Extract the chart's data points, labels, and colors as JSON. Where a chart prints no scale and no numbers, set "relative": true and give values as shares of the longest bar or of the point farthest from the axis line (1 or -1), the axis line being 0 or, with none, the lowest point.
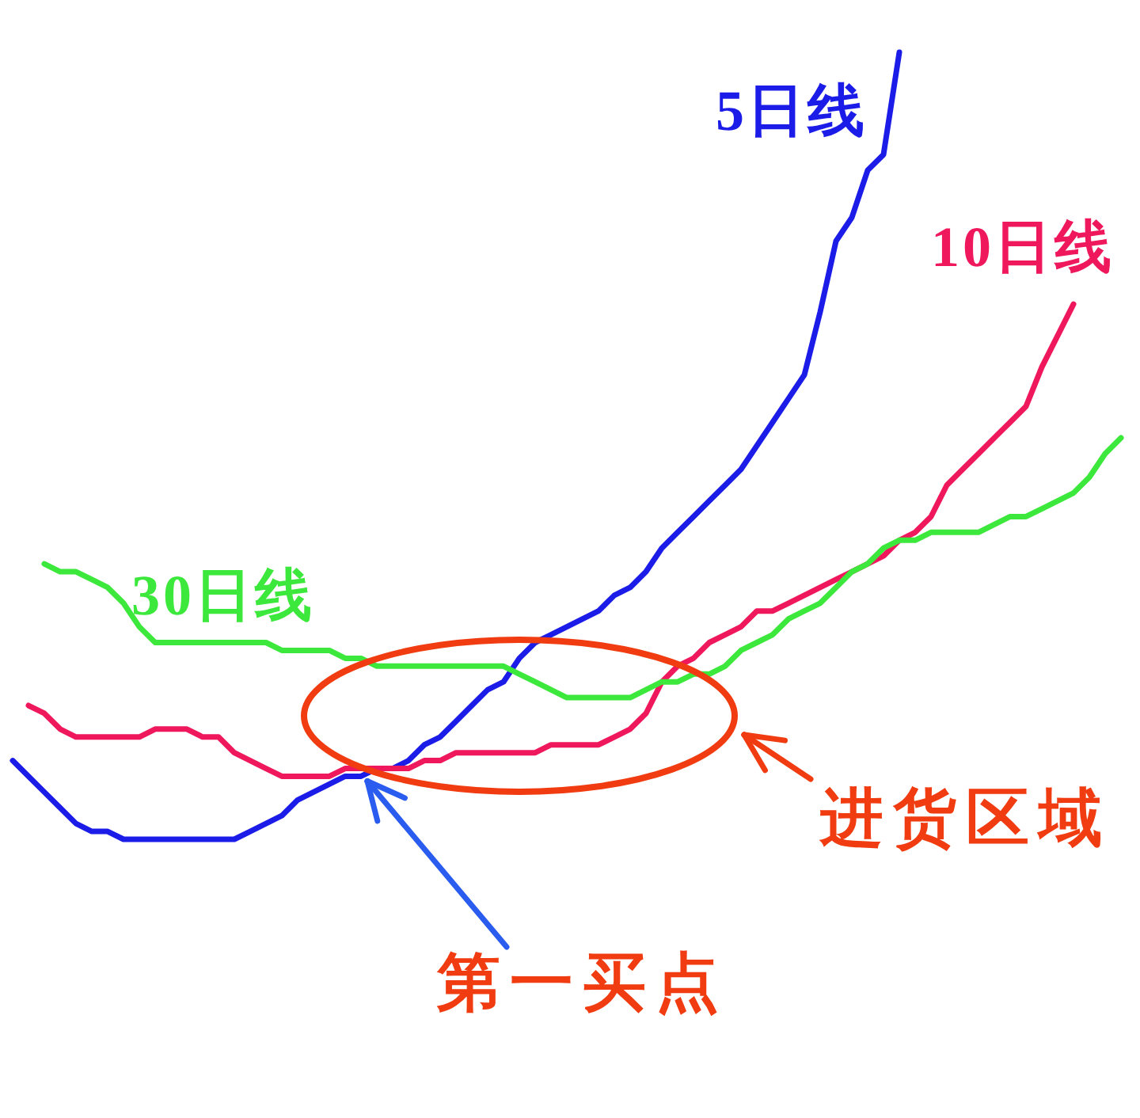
{
  "chart_data": {
    "type": "line",
    "relative": true,
    "line_style": "solid",
    "categories": [
      null,
      null,
      null,
      null,
      null,
      null,
      null,
      null,
      null,
      null,
      null,
      null,
      null,
      null,
      null,
      null,
      null,
      null,
      null,
      null,
      null,
      null,
      null,
      null,
      null,
      null,
      null,
      null,
      null,
      null,
      null,
      null,
      null,
      null,
      null,
      null,
      null,
      null,
      null,
      null,
      null,
      null,
      null,
      null,
      null,
      null,
      null,
      null,
      null,
      null,
      null,
      null,
      null,
      null,
      null,
      null,
      null,
      null,
      null,
      null,
      null,
      null,
      null,
      null,
      null,
      null,
      null,
      null,
      null,
      null,
      null
    ],
    "series": [
      {
        "name": "5日线",
        "color": "#1c1ce8",
        "values": [
          0.1,
          0.08,
          0.06,
          0.04,
          0.02,
          0.01,
          0.01,
          0,
          0,
          0,
          0,
          0,
          0,
          0,
          0,
          0.01,
          0.02,
          0.03,
          0.05,
          0.06,
          0.07,
          0.08,
          0.08,
          0.09,
          0.09,
          0.1,
          0.12,
          0.13,
          0.15,
          0.17,
          0.19,
          0.2,
          0.23,
          0.25,
          0.26,
          0.27,
          0.28,
          0.29,
          0.31,
          0.32,
          0.34,
          0.37,
          0.39,
          0.41,
          0.43,
          0.45,
          0.47,
          0.5,
          0.53,
          0.56,
          0.59,
          0.67,
          0.76,
          0.79,
          0.85,
          0.87,
          1.0,
          null,
          null,
          null,
          null,
          null,
          null,
          null,
          null,
          null,
          null,
          null,
          null,
          null,
          null
        ]
      },
      {
        "name": "10日线",
        "color": "#f0185c",
        "values": [
          null,
          0.17,
          0.16,
          0.14,
          0.13,
          0.13,
          0.13,
          0.13,
          0.13,
          0.14,
          0.14,
          0.14,
          0.13,
          0.13,
          0.11,
          0.1,
          0.09,
          0.08,
          0.08,
          0.08,
          0.08,
          0.09,
          0.09,
          0.09,
          0.09,
          0.09,
          0.1,
          0.1,
          0.11,
          0.11,
          0.11,
          0.11,
          0.11,
          0.11,
          0.12,
          0.12,
          0.12,
          0.12,
          0.13,
          0.14,
          0.16,
          0.2,
          0.22,
          0.23,
          0.25,
          0.26,
          0.27,
          0.29,
          0.29,
          0.3,
          0.31,
          0.32,
          0.33,
          0.34,
          0.35,
          0.36,
          0.38,
          0.39,
          0.41,
          0.45,
          0.47,
          0.49,
          0.51,
          0.53,
          0.55,
          0.6,
          0.64,
          0.68,
          null,
          null,
          null
        ]
      },
      {
        "name": "30日线",
        "color": "#3ce83c",
        "values": [
          null,
          null,
          0.35,
          0.34,
          0.34,
          0.33,
          0.32,
          0.3,
          0.27,
          0.25,
          0.25,
          0.25,
          0.25,
          0.25,
          0.25,
          0.25,
          0.25,
          0.24,
          0.24,
          0.24,
          0.24,
          0.23,
          0.23,
          0.22,
          0.22,
          0.22,
          0.22,
          0.22,
          0.22,
          0.22,
          0.22,
          0.22,
          0.21,
          0.2,
          0.19,
          0.18,
          0.18,
          0.18,
          0.18,
          0.18,
          0.19,
          0.2,
          0.2,
          0.21,
          0.21,
          0.22,
          0.24,
          0.25,
          0.26,
          0.28,
          0.29,
          0.3,
          0.32,
          0.34,
          0.35,
          0.37,
          0.38,
          0.38,
          0.39,
          0.39,
          0.39,
          0.39,
          0.4,
          0.41,
          0.41,
          0.42,
          0.43,
          0.44,
          0.46,
          0.49,
          0.51
        ]
      }
    ],
    "annotations": [
      "进货区域",
      "第一买点"
    ]
  }
}
